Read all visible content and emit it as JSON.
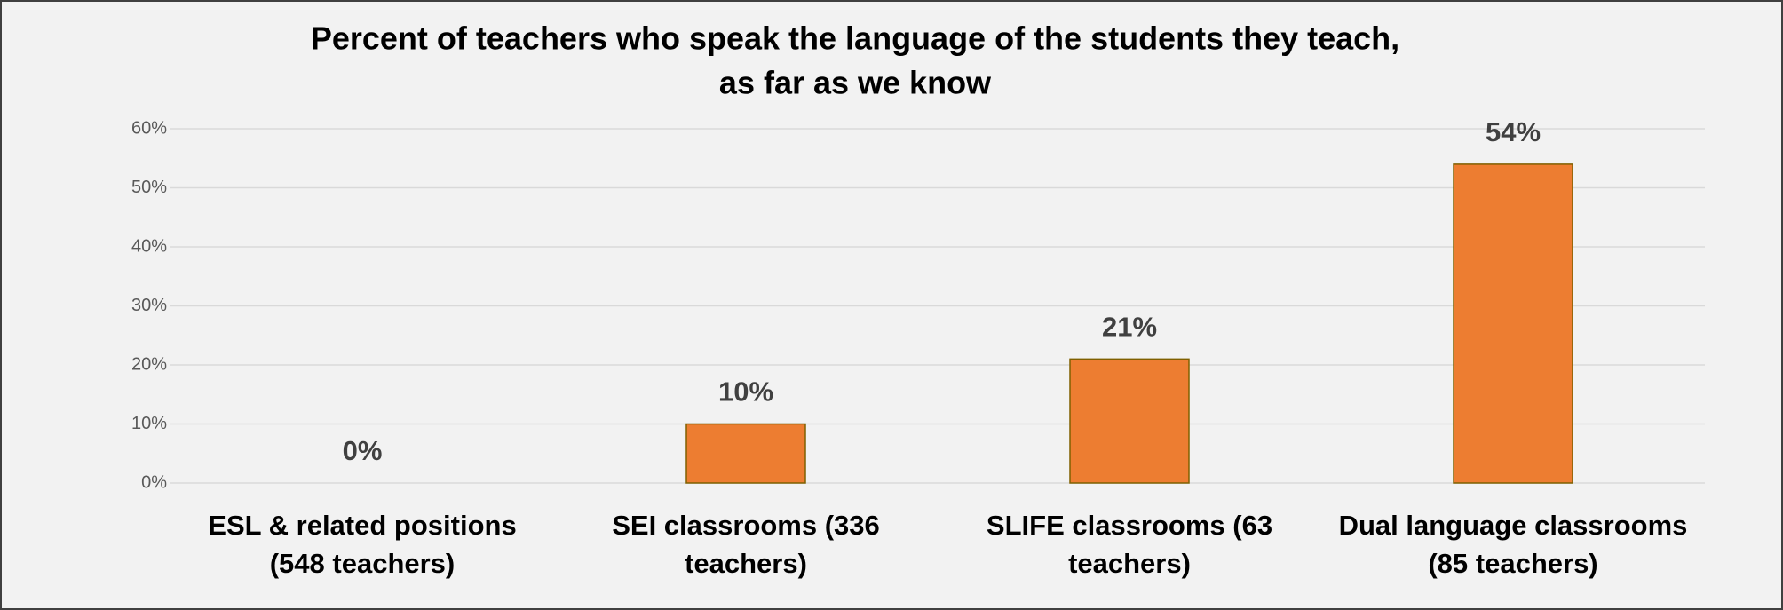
{
  "chart_data": {
    "type": "bar",
    "title": [
      "Percent of teachers who speak the language of the students they teach,",
      "as far as we know"
    ],
    "categories": [
      [
        "ESL  & related positions",
        "(548 teachers)"
      ],
      [
        "SEI classrooms (336",
        "teachers)"
      ],
      [
        "SLIFE classrooms (63",
        "teachers)"
      ],
      [
        "Dual language classrooms",
        "(85 teachers)"
      ]
    ],
    "values": [
      0,
      10,
      21,
      54
    ],
    "value_labels": [
      "0%",
      "10%",
      "21%",
      "54%"
    ],
    "color": "#ed7d31",
    "ylim": [
      0,
      60
    ],
    "yticks": [
      {
        "value": 0,
        "label": "0%"
      },
      {
        "value": 10,
        "label": "10%"
      },
      {
        "value": 20,
        "label": "20%"
      },
      {
        "value": 30,
        "label": "30%"
      },
      {
        "value": 40,
        "label": "40%"
      },
      {
        "value": 50,
        "label": "50%"
      },
      {
        "value": 60,
        "label": "60%"
      }
    ],
    "grid": true
  }
}
